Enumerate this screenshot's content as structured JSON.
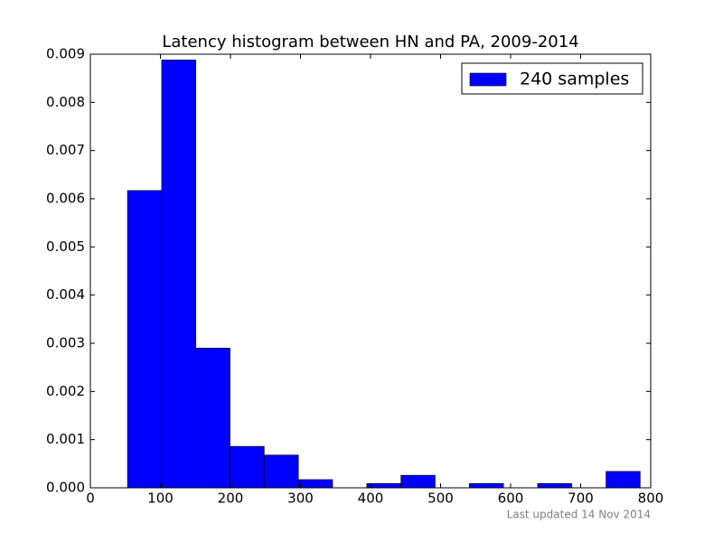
{
  "chart_data": {
    "type": "histogram",
    "title": "Latency histogram between HN and PA, 2009-2014",
    "bins": [
      53,
      101.8,
      150.6,
      199.4,
      248.2,
      297,
      345.8,
      394.6,
      443.4,
      492.2,
      541,
      589.8,
      638.6,
      687.4,
      736.2,
      785
    ],
    "series": [
      {
        "name": "240 samples",
        "color": "#0000ff",
        "values": [
          0.00617,
          0.00888,
          0.0029,
          0.00086,
          0.00068,
          0.00017,
          0,
          9e-05,
          0.00026,
          0,
          9e-05,
          0,
          9e-05,
          0,
          0.00034
        ]
      }
    ],
    "xlim": [
      0,
      800
    ],
    "xticks": [
      0,
      100,
      200,
      300,
      400,
      500,
      600,
      700,
      800
    ],
    "ylim": [
      0,
      0.009
    ],
    "yticks": [
      {
        "value": 0,
        "label": "0.000"
      },
      {
        "value": 0.001,
        "label": "0.001"
      },
      {
        "value": 0.002,
        "label": "0.002"
      },
      {
        "value": 0.003,
        "label": "0.003"
      },
      {
        "value": 0.004,
        "label": "0.004"
      },
      {
        "value": 0.005,
        "label": "0.005"
      },
      {
        "value": 0.006,
        "label": "0.006"
      },
      {
        "value": 0.007,
        "label": "0.007"
      },
      {
        "value": 0.008,
        "label": "0.008"
      },
      {
        "value": 0.009,
        "label": "0.009"
      }
    ],
    "legend": "upper right",
    "annotation": "Last updated 14 Nov 2014"
  }
}
